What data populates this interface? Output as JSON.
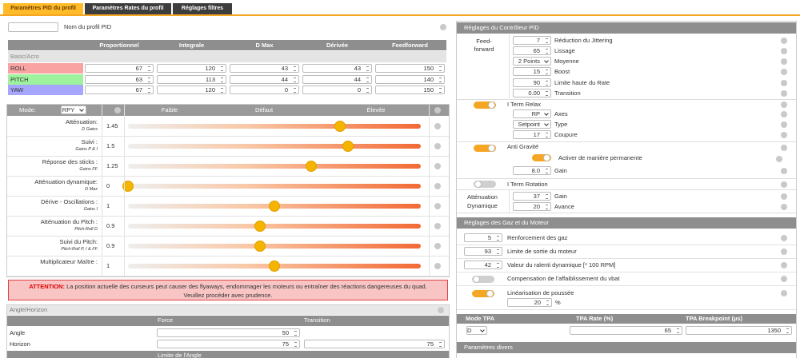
{
  "tabs": [
    "Paramètres PID du profil",
    "Paramètres Rates du profil",
    "Réglages filtres"
  ],
  "profile_name_label": "Nom du profil PID",
  "pid_table": {
    "headers": [
      "Proportionnel",
      "Integrale",
      "D Max",
      "Dérivée",
      "Feedforward"
    ],
    "group": "Basic/Acro",
    "rows": [
      {
        "name": "ROLL",
        "color": "#f9a3a3",
        "values": [
          67,
          120,
          43,
          43,
          150
        ]
      },
      {
        "name": "PITCH",
        "color": "#9ef29e",
        "values": [
          63,
          113,
          44,
          44,
          140
        ]
      },
      {
        "name": "YAW",
        "color": "#a6a6ff",
        "values": [
          67,
          120,
          0,
          0,
          150
        ]
      }
    ]
  },
  "sliders": {
    "mode_label": "Mode:",
    "mode": "RPY",
    "levels": [
      "Faible",
      "Défaut",
      "Élevée"
    ],
    "range": [
      0,
      2
    ],
    "rows": [
      {
        "label": "Atténuation:",
        "sub": "D Gains",
        "value": 1.45
      },
      {
        "label": "Suivi :",
        "sub": "Gains P & I",
        "value": 1.5
      },
      {
        "label": "Réponse des sticks :",
        "sub": "Gains FF",
        "value": 1.25
      },
      {
        "label": "Atténuation dynamique:",
        "sub": "D Max",
        "value": 0
      },
      {
        "label": "Dérive - Oscillations :",
        "sub": "Gains I",
        "value": 1
      },
      {
        "label": "Atténuation du Pitch :",
        "sub": "Pitch:Roll D",
        "value": 0.9
      },
      {
        "label": "Suivi du Pitch:",
        "sub": "Pitch:Roll P, I & FF",
        "value": 0.9
      },
      {
        "label": "Multiplicateur Maître :",
        "value": 1
      }
    ]
  },
  "warning": {
    "strong": "ATTENTION:",
    "text": "La position actuelle des curseurs peut causer des flyaways, endommager les moteurs ou entraîner des réactions dangereuses du quad. Veuillez procéder avec prudence."
  },
  "angle_horizon": {
    "title": "Angle/Horizon",
    "headers": [
      "Force",
      "Transition"
    ],
    "rows": [
      {
        "name": "Angle",
        "values": [
          50
        ]
      },
      {
        "name": "Horizon",
        "values": [
          75,
          75
        ]
      }
    ],
    "next_header": "Limite de l'Angle"
  },
  "pid_controller": {
    "title": "Réglages du Contrôleur PID",
    "feedforward": {
      "label": "Feed-forward",
      "rows": [
        {
          "value": 7,
          "label": "Réduction du Jittering"
        },
        {
          "value": 65,
          "label": "Lissage"
        },
        {
          "value": "2 Points",
          "label": "Moyenne",
          "select": true
        },
        {
          "value": 15,
          "label": "Boost"
        },
        {
          "value": 90,
          "label": "Limite haute du Rate"
        },
        {
          "value": "0.00",
          "label": "Transition"
        }
      ]
    },
    "iterm_relax": {
      "enabled": true,
      "title": "I Term Relax",
      "rows": [
        {
          "value": "RP",
          "label": "Axes",
          "select": true
        },
        {
          "value": "Setpoint",
          "label": "Type",
          "select": true
        },
        {
          "value": 17,
          "label": "Coupure"
        }
      ]
    },
    "anti_gravity": {
      "enabled": true,
      "title": "Anti Gravité",
      "permanent": {
        "enabled": true,
        "label": "Activer de manière permanente"
      },
      "rows": [
        {
          "value": "8.0",
          "label": "Gain"
        }
      ]
    },
    "iterm_rotation": {
      "enabled": false,
      "title": "I Term Rotation"
    },
    "dyn_damping": {
      "label": "Atténuation Dynamique",
      "rows": [
        {
          "value": 37,
          "label": "Gain"
        },
        {
          "value": 20,
          "label": "Avance"
        }
      ]
    }
  },
  "throttle_motor": {
    "title": "Réglages des Gaz et du Moteur",
    "rows": [
      {
        "value": 5,
        "label": "Renforcement des gaz"
      },
      {
        "value": 93,
        "label": "Limite de sortie du moteur"
      },
      {
        "value": 42,
        "label": "Valeur du ralenti dynamique [* 100 RPM]"
      },
      {
        "toggle": false,
        "label": "Compensation de l'affaiblissement du vbat"
      },
      {
        "toggle": true,
        "label": "Linéarisation de poussée",
        "value": 20,
        "unit": "%"
      }
    ]
  },
  "tpa": {
    "headers": [
      "Mode TPA",
      "TPA Rate (%)",
      "TPA Breakpoint (µs)"
    ],
    "mode": "D",
    "rate": 65,
    "breakpoint": 1350
  },
  "misc": {
    "title": "Paramètres divers"
  }
}
